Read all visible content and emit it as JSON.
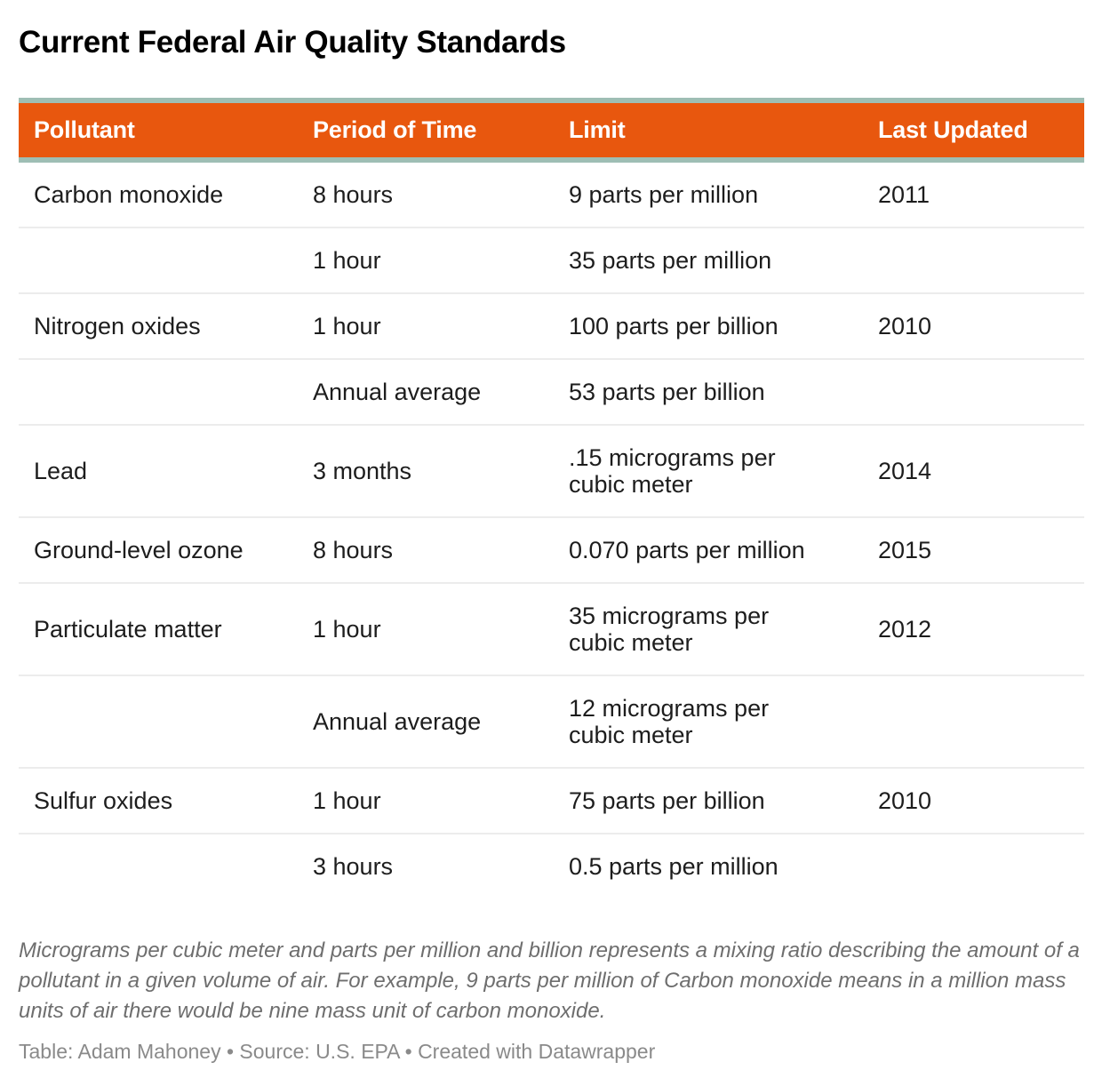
{
  "chart_data": {
    "type": "table",
    "title": "Current Federal Air Quality Standards",
    "columns": [
      "Pollutant",
      "Period of Time",
      "Limit",
      "Last Updated"
    ],
    "rows": [
      [
        "Carbon monoxide",
        "8 hours",
        "9 parts per million",
        "2011"
      ],
      [
        "",
        "1 hour",
        "35 parts per million",
        ""
      ],
      [
        "Nitrogen oxides",
        "1 hour",
        "100 parts per billion",
        "2010"
      ],
      [
        "",
        "Annual average",
        "53 parts per billion",
        ""
      ],
      [
        "Lead",
        "3 months",
        ".15 micrograms per\ncubic meter",
        "2014"
      ],
      [
        "Ground-level ozone",
        "8 hours",
        "0.070 parts per million",
        "2015"
      ],
      [
        "Particulate matter",
        "1 hour",
        "35 micrograms per\ncubic meter",
        "2012"
      ],
      [
        "",
        "Annual average",
        "12 micrograms per\ncubic meter",
        ""
      ],
      [
        "Sulfur oxides",
        "1 hour",
        "75 parts per billion",
        "2010"
      ],
      [
        "",
        "3 hours",
        "0.5 parts per million",
        ""
      ]
    ],
    "footnote": "Micrograms per cubic meter and parts per million and billion represents a mixing ratio describing the amount of a pollutant in a given volume of air. For example, 9 parts per million of Carbon monoxide means in a million mass units of air there would be nine mass unit of carbon monoxide.",
    "credit": "Table: Adam Mahoney • Source: U.S. EPA • Created with Datawrapper",
    "layout_hints": {
      "header_bg_color": "#e8570e",
      "header_text_color": "#ffffff",
      "accent_border_color": "#9ebeb4",
      "row_separator_color": "#ececec",
      "body_text_color": "#1d1d1d",
      "footnote_text_color": "#6e6e6e",
      "credit_text_color": "#8a8a8a",
      "grid": "horizontal-separators-only",
      "column_alignment": "left"
    }
  }
}
